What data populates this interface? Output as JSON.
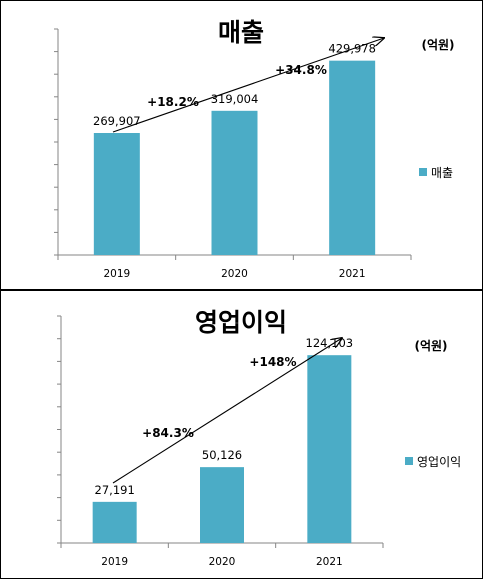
{
  "colors": {
    "bar": "#4bacc6",
    "axis": "#868686"
  },
  "unit_label": "(억원)",
  "chart_data": [
    {
      "type": "bar",
      "title": "매출",
      "categories": [
        "2019",
        "2020",
        "2021"
      ],
      "series": [
        {
          "name": "매출",
          "values": [
            269907,
            319004,
            429978
          ]
        }
      ],
      "value_labels": [
        "269,907",
        "319,004",
        "429,978"
      ],
      "growth_labels": [
        "+18.2%",
        "+34.8%"
      ],
      "ylim": [
        0,
        500000
      ],
      "grid": false,
      "legend_position": "right"
    },
    {
      "type": "bar",
      "title": "영업이익",
      "categories": [
        "2019",
        "2020",
        "2021"
      ],
      "series": [
        {
          "name": "영업이익",
          "values": [
            27191,
            50126,
            124103
          ]
        }
      ],
      "value_labels": [
        "27,191",
        "50,126",
        "124,103"
      ],
      "growth_labels": [
        "+84.3%",
        "+148%"
      ],
      "ylim": [
        0,
        150000
      ],
      "grid": false,
      "legend_position": "right"
    }
  ]
}
